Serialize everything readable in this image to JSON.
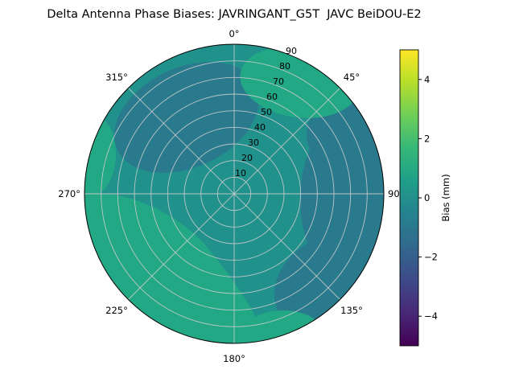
{
  "title": "Delta Antenna Phase Biases: JAVRINGANT_G5T  JAVC BeiDOU-E2",
  "chart_data": {
    "type": "heatmap",
    "subtype": "polar_filled_contour",
    "title": "Delta Antenna Phase Biases: JAVRINGANT_G5T  JAVC BeiDOU-E2",
    "angular_ticks_deg": [
      0,
      45,
      90,
      135,
      180,
      225,
      270,
      315
    ],
    "angular_tick_labels": [
      "0°",
      "45°",
      "90°",
      "135°",
      "180°",
      "225°",
      "270°",
      "315°"
    ],
    "radial_ticks": [
      10,
      20,
      30,
      40,
      50,
      60,
      70,
      80,
      90
    ],
    "radial_tick_labels": [
      "10",
      "20",
      "30",
      "40",
      "50",
      "60",
      "70",
      "80",
      "90"
    ],
    "radial_range": [
      0,
      90
    ],
    "grid": true,
    "legend_position": "right-colorbar",
    "colorbar": {
      "label": "Bias (mm)",
      "ticks": [
        -4,
        -2,
        0,
        2,
        4
      ],
      "tick_labels_top_to_bottom": [
        "4",
        "2",
        "0",
        "−2",
        "−4"
      ],
      "vmin": -5,
      "vmax": 5,
      "colormap": "viridis",
      "gradient_stops_bottom_to_top": [
        "#440154",
        "#482878",
        "#3e4a89",
        "#31688e",
        "#26828e",
        "#1f9e89",
        "#35b779",
        "#6ece58",
        "#b5de2b",
        "#fde725"
      ]
    },
    "bias_bands_mm": {
      "negative_band": "-1 to 0",
      "base_band": "0 to 1",
      "positive_band": "1 to 2"
    },
    "regions": [
      {
        "location": "center and most of the disk",
        "bias_mm": "0 to 1"
      },
      {
        "location": "southwest quadrant (180°–270°), mid radius to edge",
        "bias_mm": "1 to 2"
      },
      {
        "location": "west edge near 280°",
        "bias_mm": "1 to 2"
      },
      {
        "location": "north/northeast high-zenith area near 0°–45°",
        "bias_mm": "1 to 2"
      },
      {
        "location": "bottom edge near 180°",
        "bias_mm": "1 to 2"
      },
      {
        "location": "east edge between 45° and 135°",
        "bias_mm": "-1 to 0"
      },
      {
        "location": "northwest mid radius",
        "bias_mm": "-1 to 0"
      },
      {
        "location": "southeast mid radius",
        "bias_mm": "-1 to 0"
      }
    ],
    "colors": {
      "band_negative": "#2a7a8e",
      "band_base": "#21918c",
      "band_positive": "#22a884",
      "grid_line": "#cccccc",
      "spine": "#000000",
      "background": "#ffffff"
    }
  }
}
